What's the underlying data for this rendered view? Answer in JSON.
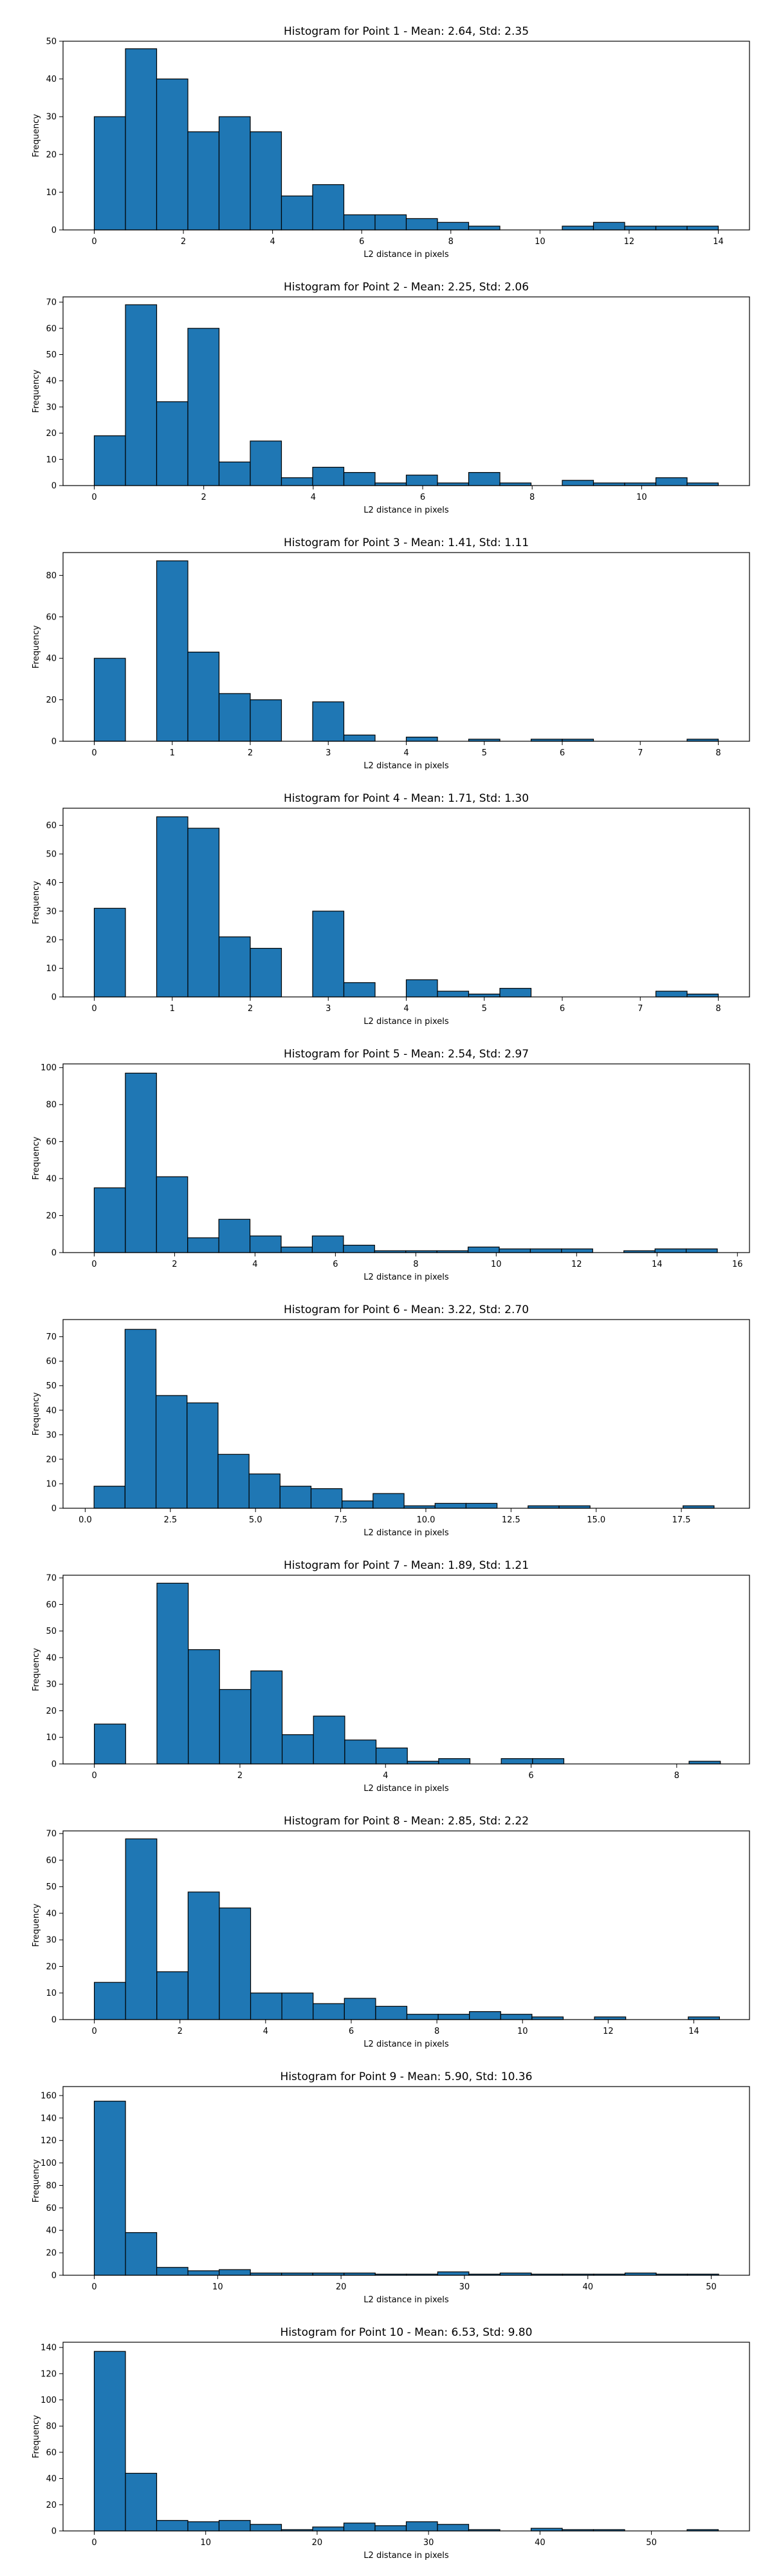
{
  "chart_data": [
    {
      "type": "bar",
      "title": "Histogram for Point 1 - Mean: 2.64, Std: 2.35",
      "xlabel": "L2 distance in pixels",
      "ylabel": "Frequency",
      "bin_start": 0,
      "bin_width": 0.7,
      "values": [
        30,
        48,
        40,
        26,
        30,
        26,
        9,
        12,
        4,
        4,
        3,
        2,
        1,
        0,
        0,
        1,
        2,
        1,
        1,
        1
      ],
      "xlim": [
        -0.7,
        14.7
      ],
      "ylim": [
        0,
        50
      ],
      "xticks": [
        0,
        2,
        4,
        6,
        8,
        10,
        12,
        14
      ],
      "yticks": [
        0,
        10,
        20,
        30,
        40,
        50
      ],
      "color": "#1f77b4"
    },
    {
      "type": "bar",
      "title": "Histogram for Point 2 - Mean: 2.25, Std: 2.06",
      "xlabel": "L2 distance in pixels",
      "ylabel": "Frequency",
      "bin_start": 0,
      "bin_width": 0.57,
      "values": [
        19,
        69,
        32,
        60,
        9,
        17,
        3,
        7,
        5,
        1,
        4,
        1,
        5,
        1,
        0,
        2,
        1,
        1,
        3,
        1
      ],
      "xlim": [
        -0.57,
        11.97
      ],
      "ylim": [
        0,
        72
      ],
      "xticks": [
        0,
        2,
        4,
        6,
        8,
        10
      ],
      "yticks": [
        0,
        10,
        20,
        30,
        40,
        50,
        60,
        70
      ],
      "color": "#1f77b4"
    },
    {
      "type": "bar",
      "title": "Histogram for Point 3 - Mean: 1.41, Std: 1.11",
      "xlabel": "L2 distance in pixels",
      "ylabel": "Frequency",
      "bin_start": 0,
      "bin_width": 0.4,
      "values": [
        40,
        0,
        87,
        43,
        23,
        20,
        0,
        19,
        3,
        0,
        2,
        0,
        1,
        0,
        1,
        1,
        0,
        0,
        0,
        1
      ],
      "xlim": [
        -0.4,
        8.4
      ],
      "ylim": [
        0,
        91
      ],
      "xticks": [
        0,
        1,
        2,
        3,
        4,
        5,
        6,
        7,
        8
      ],
      "yticks": [
        0,
        20,
        40,
        60,
        80
      ],
      "color": "#1f77b4"
    },
    {
      "type": "bar",
      "title": "Histogram for Point 4 - Mean: 1.71, Std: 1.30",
      "xlabel": "L2 distance in pixels",
      "ylabel": "Frequency",
      "bin_start": 0,
      "bin_width": 0.4,
      "values": [
        31,
        0,
        63,
        59,
        21,
        17,
        0,
        30,
        5,
        0,
        6,
        2,
        1,
        3,
        0,
        0,
        0,
        0,
        2,
        1
      ],
      "xlim": [
        -0.4,
        8.4
      ],
      "ylim": [
        0,
        66
      ],
      "xticks": [
        0,
        1,
        2,
        3,
        4,
        5,
        6,
        7,
        8
      ],
      "yticks": [
        0,
        10,
        20,
        30,
        40,
        50,
        60
      ],
      "color": "#1f77b4"
    },
    {
      "type": "bar",
      "title": "Histogram for Point 5 - Mean: 2.54, Std: 2.97",
      "xlabel": "L2 distance in pixels",
      "ylabel": "Frequency",
      "bin_start": 0,
      "bin_width": 0.775,
      "values": [
        35,
        97,
        41,
        8,
        18,
        9,
        3,
        9,
        4,
        1,
        1,
        1,
        3,
        2,
        2,
        2,
        0,
        1,
        2,
        2
      ],
      "xlim": [
        -0.775,
        16.3
      ],
      "ylim": [
        0,
        102
      ],
      "xticks": [
        0,
        2,
        4,
        6,
        8,
        10,
        12,
        14,
        16
      ],
      "yticks": [
        0,
        20,
        40,
        60,
        80,
        100
      ],
      "color": "#1f77b4"
    },
    {
      "type": "bar",
      "title": "Histogram for Point 6 - Mean: 3.22, Std: 2.70",
      "xlabel": "L2 distance in pixels",
      "ylabel": "Frequency",
      "bin_start": 0.26,
      "bin_width": 0.91,
      "values": [
        9,
        73,
        46,
        43,
        22,
        14,
        9,
        8,
        3,
        6,
        1,
        2,
        2,
        0,
        1,
        1,
        0,
        0,
        0,
        1
      ],
      "xlim": [
        -0.65,
        19.5
      ],
      "ylim": [
        0,
        77
      ],
      "xticks": [
        0.0,
        2.5,
        5.0,
        7.5,
        10.0,
        12.5,
        15.0,
        17.5
      ],
      "xtick_labels": [
        "0.0",
        "2.5",
        "5.0",
        "7.5",
        "10.0",
        "12.5",
        "15.0",
        "17.5"
      ],
      "yticks": [
        0,
        10,
        20,
        30,
        40,
        50,
        60,
        70
      ],
      "color": "#1f77b4"
    },
    {
      "type": "bar",
      "title": "Histogram for Point 7 - Mean: 1.89, Std: 1.21",
      "xlabel": "L2 distance in pixels",
      "ylabel": "Frequency",
      "bin_start": 0,
      "bin_width": 0.43,
      "values": [
        15,
        0,
        68,
        43,
        28,
        35,
        11,
        18,
        9,
        6,
        1,
        2,
        0,
        2,
        2,
        0,
        0,
        0,
        0,
        1
      ],
      "xlim": [
        -0.43,
        9.0
      ],
      "ylim": [
        0,
        71
      ],
      "xticks": [
        0,
        2,
        4,
        6,
        8
      ],
      "yticks": [
        0,
        10,
        20,
        30,
        40,
        50,
        60,
        70
      ],
      "color": "#1f77b4"
    },
    {
      "type": "bar",
      "title": "Histogram for Point 8 - Mean: 2.85, Std: 2.22",
      "xlabel": "L2 distance in pixels",
      "ylabel": "Frequency",
      "bin_start": 0,
      "bin_width": 0.73,
      "values": [
        14,
        68,
        18,
        48,
        42,
        10,
        10,
        6,
        8,
        5,
        2,
        2,
        3,
        2,
        1,
        0,
        1,
        0,
        0,
        1
      ],
      "xlim": [
        -0.73,
        15.3
      ],
      "ylim": [
        0,
        71
      ],
      "xticks": [
        0,
        2,
        4,
        6,
        8,
        10,
        12,
        14
      ],
      "yticks": [
        0,
        10,
        20,
        30,
        40,
        50,
        60,
        70
      ],
      "color": "#1f77b4"
    },
    {
      "type": "bar",
      "title": "Histogram for Point 9 - Mean: 5.90, Std: 10.36",
      "xlabel": "L2 distance in pixels",
      "ylabel": "Frequency",
      "bin_start": 0,
      "bin_width": 2.53,
      "values": [
        155,
        38,
        7,
        4,
        5,
        2,
        2,
        2,
        2,
        1,
        1,
        3,
        1,
        2,
        1,
        1,
        1,
        2,
        1,
        1
      ],
      "xlim": [
        -2.53,
        53.1
      ],
      "ylim": [
        0,
        168
      ],
      "xticks": [
        0,
        10,
        20,
        30,
        40,
        50
      ],
      "yticks": [
        0,
        20,
        40,
        60,
        80,
        100,
        120,
        140,
        160
      ],
      "color": "#1f77b4"
    },
    {
      "type": "bar",
      "title": "Histogram for Point 10 - Mean: 6.53, Std: 9.80",
      "xlabel": "L2 distance in pixels",
      "ylabel": "Frequency",
      "bin_start": 0,
      "bin_width": 2.8,
      "values": [
        137,
        44,
        8,
        7,
        8,
        5,
        1,
        3,
        6,
        4,
        7,
        5,
        1,
        0,
        2,
        1,
        1,
        0,
        0,
        1
      ],
      "xlim": [
        -2.8,
        58.8
      ],
      "ylim": [
        0,
        144
      ],
      "xticks": [
        0,
        10,
        20,
        30,
        40,
        50
      ],
      "yticks": [
        0,
        20,
        40,
        60,
        80,
        100,
        120,
        140
      ],
      "color": "#1f77b4"
    }
  ]
}
